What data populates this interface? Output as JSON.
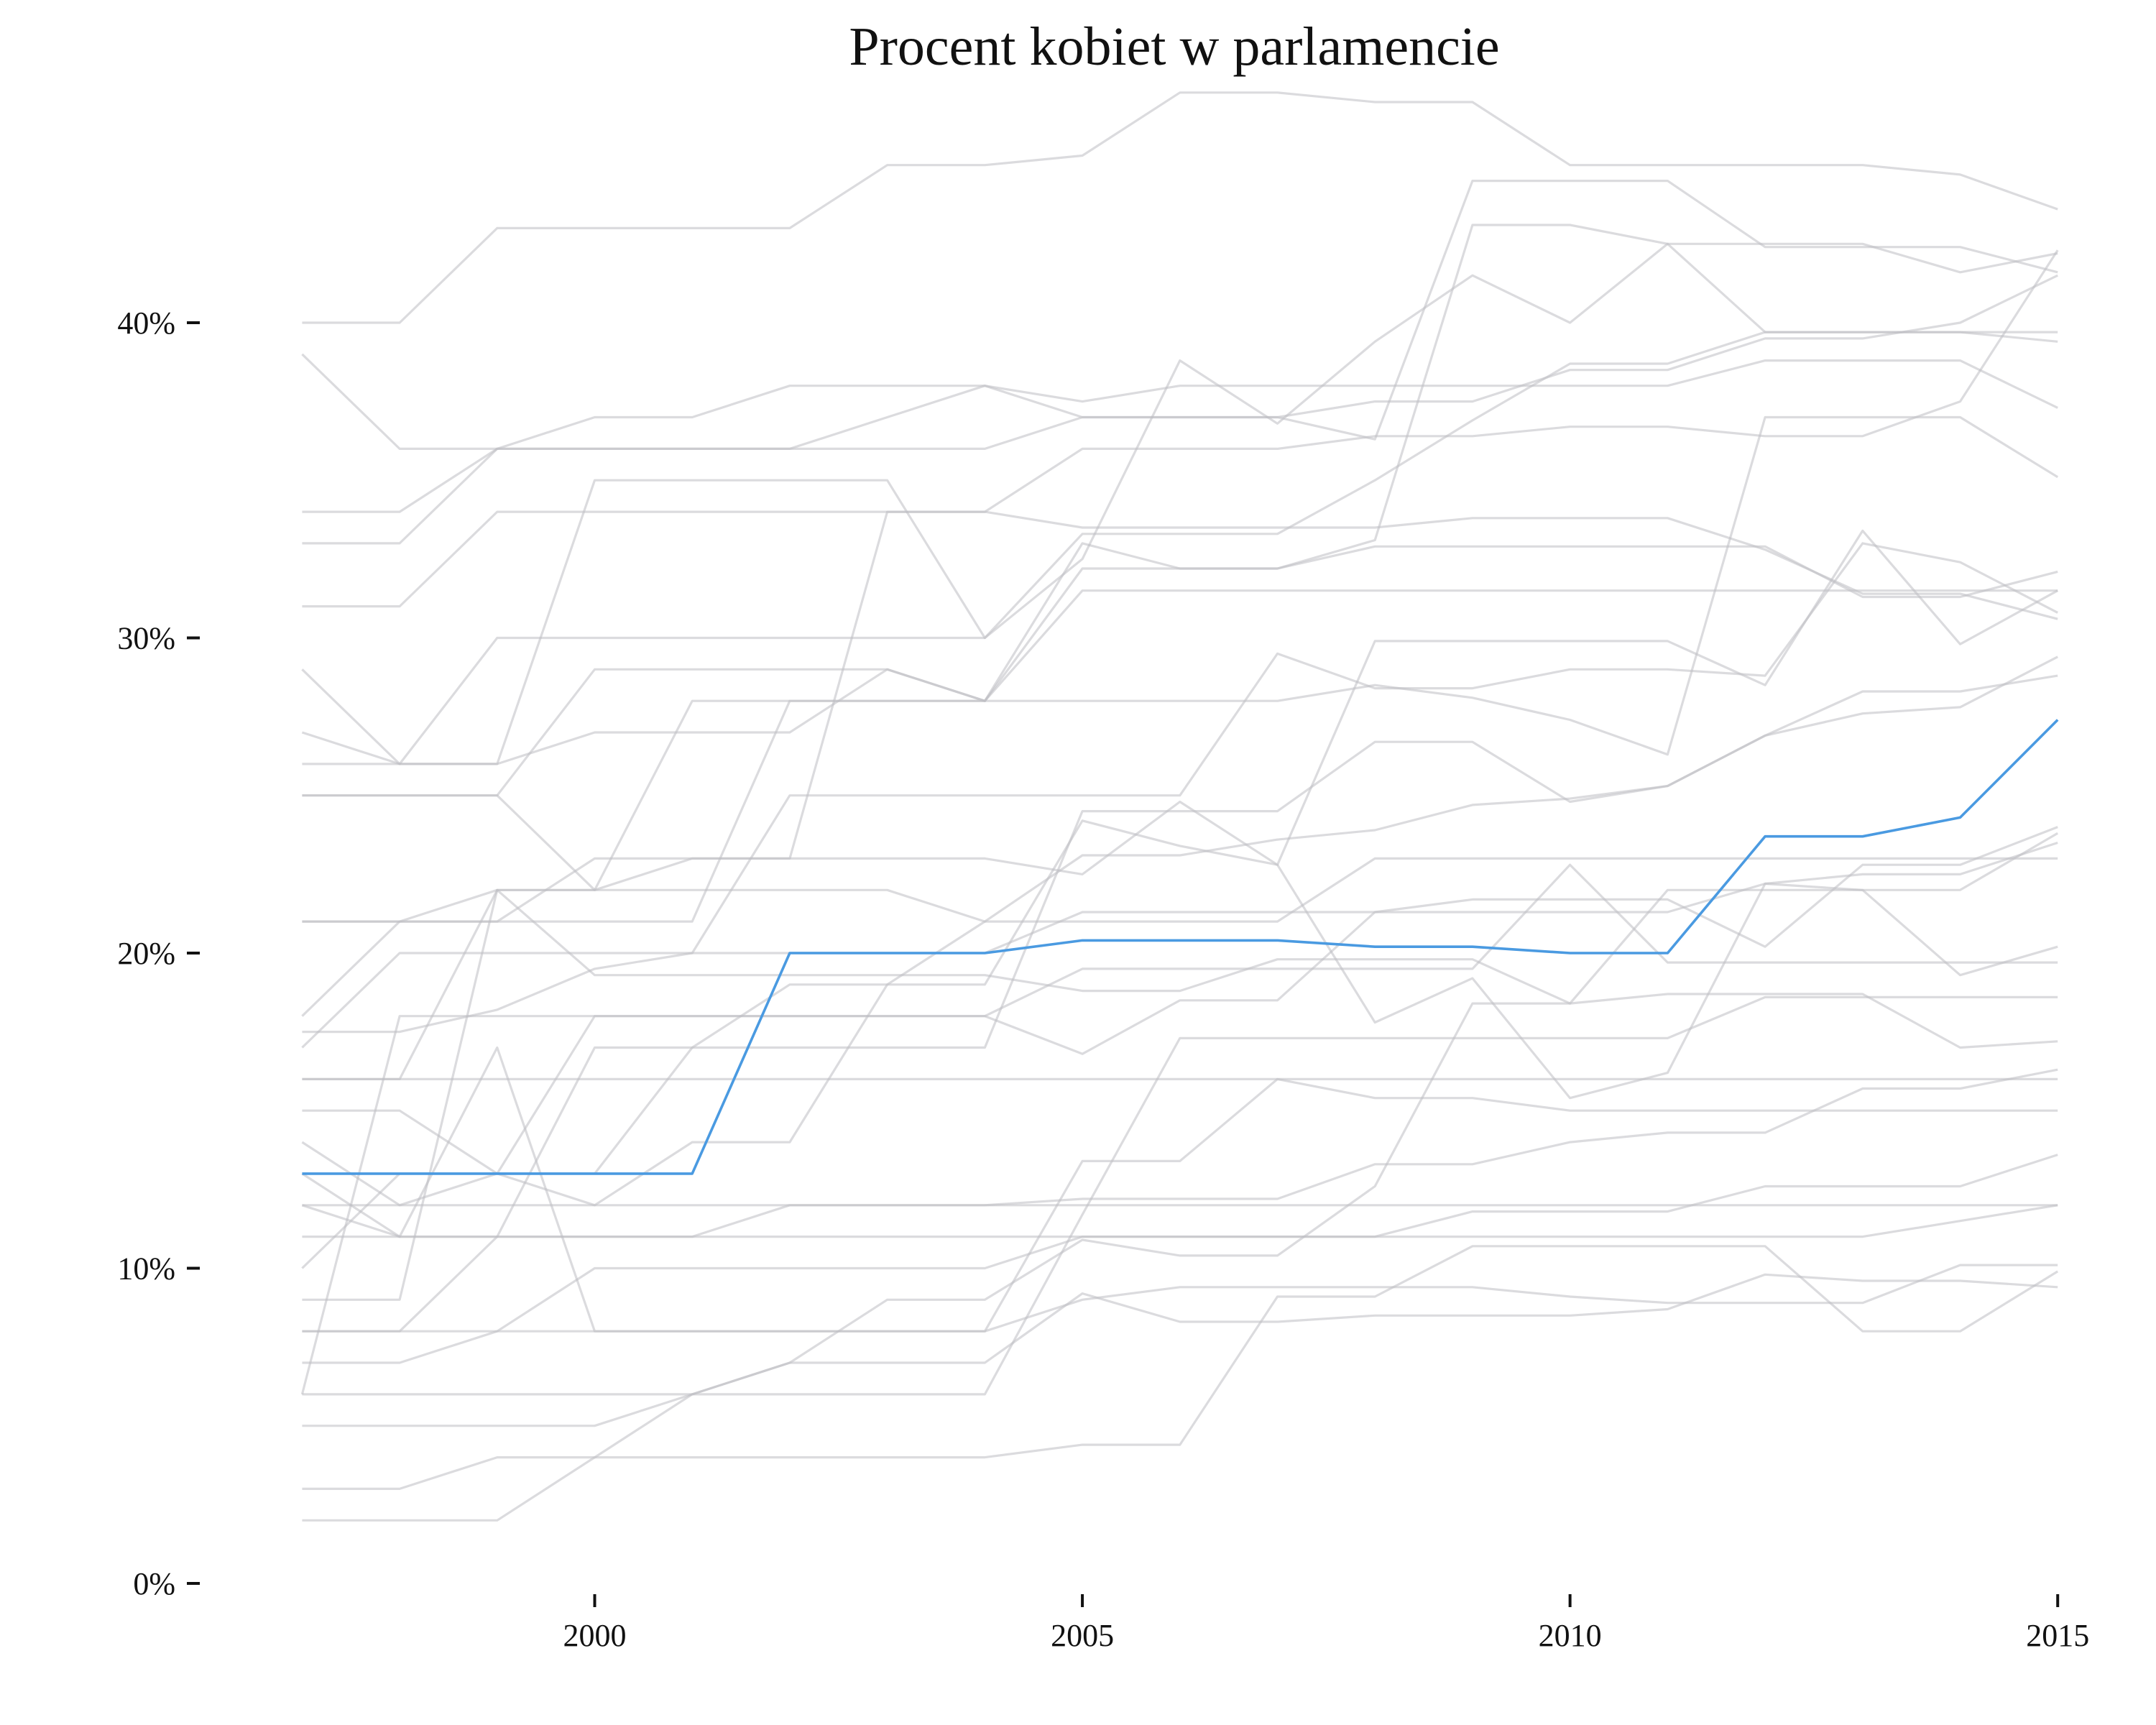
{
  "chart_data": {
    "type": "line",
    "title": "Procent kobiet w parlamencie",
    "xlabel": "",
    "ylabel": "",
    "xlim": [
      1996.85,
      2015.05
    ],
    "ylim": [
      0,
      47
    ],
    "x_ticks": [
      2000,
      2005,
      2010,
      2015
    ],
    "x_tick_labels": [
      "2000",
      "2005",
      "2010",
      "2015"
    ],
    "y_ticks": [
      0,
      10,
      20,
      30,
      40
    ],
    "y_tick_labels": [
      "0%",
      "10%",
      "20%",
      "30%",
      "40%"
    ],
    "grid": false,
    "legend": "none",
    "x": [
      1997,
      1998,
      1999,
      2000,
      2001,
      2002,
      2003,
      2004,
      2005,
      2006,
      2007,
      2008,
      2009,
      2010,
      2011,
      2012,
      2013,
      2014,
      2015
    ],
    "highlight_color": "#4a9ae1",
    "background_color": "#bdbdc2",
    "highlight_series": {
      "values": [
        13,
        13,
        13,
        13,
        13,
        20,
        20,
        20,
        20.4,
        20.4,
        20.4,
        20.2,
        20.2,
        20,
        20,
        23.7,
        23.7,
        24.3,
        27.4
      ]
    },
    "series": [
      {
        "values": [
          40,
          40,
          43,
          43,
          43,
          43,
          45,
          45,
          45.3,
          47.3,
          47.3,
          47,
          47,
          45,
          45,
          45,
          45,
          44.7,
          43.6
        ]
      },
      {
        "values": [
          39,
          36,
          36,
          36,
          36,
          36,
          36,
          36,
          37,
          37,
          37,
          37.5,
          37.5,
          38.5,
          38.5,
          39.5,
          39.5,
          40,
          41.5
        ]
      },
      {
        "values": [
          34,
          34,
          36,
          37,
          37,
          38,
          38,
          38,
          37,
          37,
          37,
          36.3,
          44.5,
          44.5,
          44.5,
          42.4,
          42.4,
          42.4,
          41.6
        ]
      },
      {
        "values": [
          33,
          33,
          36,
          36,
          36,
          36,
          37,
          38,
          37.5,
          38,
          38,
          38,
          38,
          38,
          38,
          38.8,
          38.8,
          38.8,
          37.3
        ]
      },
      {
        "values": [
          31,
          31,
          34,
          34,
          34,
          34,
          34,
          34,
          36,
          36,
          36,
          36.4,
          36.4,
          36.7,
          36.7,
          36.4,
          36.4,
          37.5,
          42.3
        ]
      },
      {
        "values": [
          29,
          26,
          30,
          30,
          30,
          30,
          30,
          30,
          33.3,
          33.3,
          33.3,
          35,
          36.9,
          38.7,
          38.7,
          39.7,
          39.7,
          39.7,
          39.7
        ]
      },
      {
        "values": [
          27,
          26,
          26,
          27,
          27,
          27,
          29,
          28,
          33,
          32.2,
          32.2,
          33.1,
          43.1,
          43.1,
          42.5,
          39.7,
          39.7,
          39.7,
          39.4
        ]
      },
      {
        "values": [
          26,
          26,
          26,
          35,
          35,
          35,
          35,
          30,
          32.5,
          38.8,
          36.8,
          39.4,
          41.5,
          40,
          42.5,
          42.5,
          42.5,
          41.6,
          42.2
        ]
      },
      {
        "values": [
          25,
          25,
          25,
          22,
          23,
          23,
          34,
          34,
          33.5,
          33.5,
          33.5,
          33.5,
          33.8,
          33.8,
          33.8,
          32.8,
          31.4,
          31.4,
          30.6
        ]
      },
      {
        "values": [
          25,
          25,
          25,
          29,
          29,
          29,
          29,
          28,
          32.2,
          32.2,
          32.2,
          32.9,
          32.9,
          32.9,
          32.9,
          32.9,
          31.3,
          31.3,
          32.1
        ]
      },
      {
        "values": [
          21,
          21,
          21,
          23,
          23,
          23,
          23,
          23,
          22.5,
          24.8,
          22.8,
          29.9,
          29.9,
          29.9,
          29.9,
          28.5,
          33.4,
          29.8,
          31.5
        ]
      },
      {
        "values": [
          18,
          21,
          21,
          21,
          21,
          28,
          28,
          28,
          31.5,
          31.5,
          31.5,
          31.5,
          31.5,
          31.5,
          31.5,
          31.5,
          31.5,
          31.5,
          31.5
        ]
      },
      {
        "values": [
          17,
          20,
          20,
          20,
          20,
          25,
          25,
          25,
          25,
          25,
          29.5,
          28.4,
          28.4,
          29,
          29,
          28.8,
          33,
          32.4,
          30.8
        ]
      },
      {
        "values": [
          16,
          16,
          22,
          22,
          28,
          28,
          28,
          28,
          28,
          28,
          28,
          28.5,
          28.1,
          27.4,
          26.3,
          37,
          37,
          37,
          35.1
        ]
      },
      {
        "values": [
          16,
          16,
          16,
          16,
          16,
          16,
          16,
          16,
          16,
          16,
          16,
          16,
          16,
          16,
          16,
          16,
          16,
          16,
          16
        ]
      },
      {
        "values": [
          15,
          15,
          13,
          13,
          17,
          17,
          17,
          17,
          24.5,
          24.5,
          24.5,
          26.7,
          26.7,
          24.8,
          25.3,
          26.9,
          28.3,
          28.3,
          28.8
        ]
      },
      {
        "values": [
          14,
          12,
          12,
          12,
          12,
          12,
          12,
          12,
          12,
          12,
          12,
          12,
          12,
          12,
          12,
          12,
          12,
          12,
          12
        ]
      },
      {
        "values": [
          13,
          11,
          11,
          11,
          11,
          12,
          12,
          12,
          12.2,
          12.2,
          12.2,
          13.3,
          13.3,
          14,
          14.3,
          14.3,
          15.7,
          15.7,
          16.3
        ]
      },
      {
        "values": [
          12,
          11,
          11,
          17,
          17,
          19,
          19,
          21,
          21,
          21,
          21,
          23,
          23,
          23,
          23,
          23,
          23,
          23,
          23
        ]
      },
      {
        "values": [
          12,
          12,
          13,
          12,
          14,
          14,
          19,
          19,
          24.2,
          23.4,
          22.8,
          17.8,
          19.2,
          15.4,
          16.2,
          22.2,
          22,
          19.3,
          20.2
        ]
      },
      {
        "values": [
          11,
          11,
          17,
          8,
          8,
          8,
          8,
          8,
          13.4,
          13.4,
          16,
          15.4,
          15.4,
          15,
          15,
          15,
          15,
          15,
          15
        ]
      },
      {
        "values": [
          10,
          13,
          13,
          18,
          18,
          18,
          18,
          18,
          16.8,
          18.5,
          18.5,
          21.3,
          21.3,
          21.3,
          21.3,
          22.2,
          22.5,
          22.5,
          23.5
        ]
      },
      {
        "values": [
          9,
          9,
          22,
          22,
          22,
          22,
          22,
          21,
          23.1,
          23.1,
          23.6,
          23.9,
          24.7,
          24.9,
          25.3,
          26.9,
          27.6,
          27.8,
          29.4
        ]
      },
      {
        "values": [
          8,
          8,
          8,
          10,
          10,
          10,
          10,
          10,
          11,
          11,
          11,
          11,
          11,
          11,
          11,
          11,
          11,
          11.5,
          12
        ]
      },
      {
        "values": [
          8,
          8,
          11,
          11,
          11,
          11,
          11,
          11,
          11,
          11,
          11,
          11,
          11.8,
          11.8,
          11.8,
          12.6,
          12.6,
          12.6,
          13.6
        ]
      },
      {
        "values": [
          7,
          7,
          8,
          8,
          8,
          8,
          8,
          8,
          9,
          9.4,
          9.4,
          9.4,
          9.4,
          9.1,
          8.9,
          8.9,
          8.9,
          10.1,
          10.1
        ]
      },
      {
        "values": [
          6,
          18,
          18,
          18,
          18,
          18,
          18,
          18,
          19.5,
          19.5,
          19.5,
          19.5,
          19.5,
          22.8,
          19.7,
          19.7,
          19.7,
          19.7,
          19.7
        ]
      },
      {
        "values": [
          6,
          6,
          6,
          6,
          6,
          6,
          6,
          6,
          11.7,
          17.3,
          17.3,
          17.3,
          17.3,
          17.3,
          17.3,
          18.6,
          18.6,
          18.6,
          18.6
        ]
      },
      {
        "values": [
          5,
          5,
          5,
          5,
          6,
          7,
          7,
          7,
          9.2,
          8.3,
          8.3,
          8.5,
          8.5,
          8.5,
          8.7,
          9.8,
          9.6,
          9.6,
          9.4
        ]
      },
      {
        "values": [
          3,
          3,
          4,
          4,
          4,
          4,
          4,
          4,
          4.4,
          4.4,
          9.1,
          9.1,
          10.7,
          10.7,
          10.7,
          10.7,
          8,
          8,
          9.9
        ]
      },
      {
        "values": [
          2,
          2,
          2,
          4,
          6,
          7,
          9,
          9,
          10.9,
          10.4,
          10.4,
          12.6,
          18.4,
          18.4,
          22,
          22,
          22,
          22,
          23.8
        ]
      },
      {
        "values": [
          21,
          21,
          22,
          19.3,
          19.3,
          19.3,
          19.3,
          19.3,
          18.8,
          18.8,
          19.8,
          19.8,
          19.8,
          18.4,
          18.7,
          18.7,
          18.7,
          17,
          17.2
        ]
      },
      {
        "values": [
          17.5,
          17.5,
          18.2,
          19.5,
          20,
          20,
          20,
          20,
          21.3,
          21.3,
          21.3,
          21.3,
          21.7,
          21.7,
          21.7,
          20.2,
          22.8,
          22.8,
          24
        ]
      }
    ]
  }
}
